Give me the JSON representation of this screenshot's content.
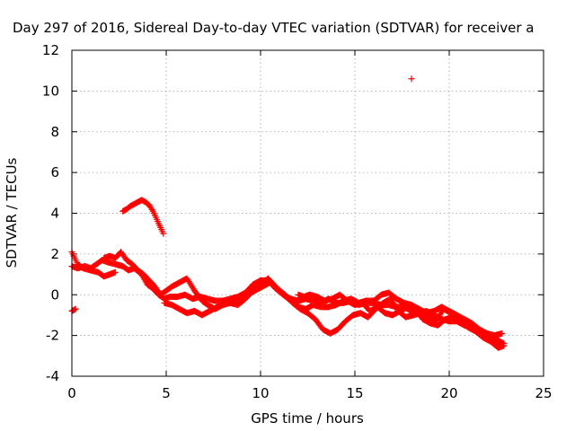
{
  "chart_data": {
    "type": "scatter",
    "title": "Day 297 of 2016, Sidereal Day-to-day VTEC variation (SDTVAR) for receiver a",
    "xlabel": "GPS time / hours",
    "ylabel": "SDTVAR / TECUs",
    "xlim": [
      0,
      25
    ],
    "ylim": [
      -4,
      12
    ],
    "xticks": [
      0,
      5,
      10,
      15,
      20,
      25
    ],
    "yticks": [
      -4,
      -2,
      0,
      2,
      4,
      6,
      8,
      10,
      12
    ],
    "grid": true,
    "marker": "+",
    "color": "#ff0000",
    "series": [
      {
        "name": "SDTVAR",
        "segments": [
          {
            "x": [
              0.0,
              0.3,
              0.6,
              1.0,
              1.4,
              1.7,
              2.0,
              2.3
            ],
            "y": [
              2.1,
              1.5,
              1.3,
              1.2,
              1.1,
              0.9,
              1.0,
              1.1
            ]
          },
          {
            "x": [
              0.0,
              0.3,
              0.7,
              1.0,
              1.3,
              1.6,
              1.9,
              2.3,
              2.7,
              3.0,
              3.3,
              3.7,
              4.0,
              4.3,
              4.6,
              4.9,
              5.2,
              5.6,
              6.0,
              6.4,
              6.8,
              7.2,
              7.6,
              8.0,
              8.4,
              8.8,
              9.2,
              9.6,
              10.0,
              10.4,
              10.8,
              11.2,
              11.6,
              12.0,
              12.4,
              12.8,
              13.2,
              13.6,
              14.0,
              14.4,
              14.8,
              15.2,
              15.6,
              16.0,
              16.4,
              16.8,
              17.2,
              17.6,
              18.0,
              18.4,
              18.8,
              19.2,
              19.6,
              20.0,
              20.4,
              20.8,
              21.2,
              21.6,
              22.0,
              22.4,
              22.8
            ],
            "y": [
              1.4,
              1.3,
              1.4,
              1.3,
              1.5,
              1.7,
              1.6,
              1.5,
              1.4,
              1.2,
              1.3,
              1.0,
              0.5,
              0.3,
              0.0,
              -0.2,
              -0.1,
              -0.1,
              0.0,
              -0.2,
              -0.1,
              -0.2,
              -0.3,
              -0.3,
              -0.2,
              -0.1,
              0.1,
              0.5,
              0.7,
              0.7,
              0.3,
              0.0,
              -0.2,
              -0.3,
              -0.2,
              -0.3,
              -0.4,
              -0.2,
              -0.4,
              -0.4,
              -0.3,
              -0.5,
              -0.4,
              -0.4,
              -0.5,
              -0.5,
              -0.6,
              -0.6,
              -0.8,
              -0.9,
              -0.8,
              -1.0,
              -1.2,
              -1.3,
              -1.3,
              -1.5,
              -1.6,
              -1.9,
              -2.1,
              -2.3,
              -2.5
            ]
          },
          {
            "x": [
              1.7,
              2.0,
              2.3,
              2.6,
              2.9,
              3.2,
              3.5,
              3.8,
              4.1,
              4.4,
              4.7,
              5.0,
              5.3,
              5.7,
              6.1,
              6.5,
              6.9,
              7.2,
              7.6,
              8.0,
              8.4,
              8.8,
              9.2,
              9.6,
              10.0,
              10.4,
              10.8,
              11.2,
              11.6,
              12.0,
              12.4,
              12.8,
              13.2,
              13.6,
              14.0,
              14.4,
              14.8,
              15.2,
              15.6,
              16.0,
              16.4,
              16.8,
              17.2,
              17.6,
              18.0,
              18.4,
              18.8,
              19.2,
              19.6,
              20.0,
              20.4,
              20.8,
              21.2,
              21.6,
              22.0,
              22.4,
              22.8
            ],
            "y": [
              1.8,
              1.9,
              1.8,
              2.1,
              1.7,
              1.5,
              1.2,
              1.0,
              0.7,
              0.4,
              0.0,
              0.2,
              0.4,
              0.6,
              0.8,
              0.2,
              -0.3,
              -0.5,
              -0.7,
              -0.5,
              -0.4,
              -0.5,
              -0.2,
              0.2,
              0.5,
              0.8,
              0.4,
              0.0,
              -0.3,
              -0.6,
              -0.7,
              -0.5,
              -0.6,
              -0.6,
              -0.5,
              -0.3,
              -0.2,
              -0.4,
              -0.3,
              -0.3,
              0.0,
              0.1,
              -0.2,
              -0.4,
              -0.5,
              -0.7,
              -0.9,
              -0.8,
              -0.6,
              -0.8,
              -1.0,
              -1.2,
              -1.4,
              -1.7,
              -1.9,
              -2.0,
              -1.9
            ]
          },
          {
            "x": [
              4.9,
              5.3,
              5.7,
              6.1,
              6.5,
              6.9,
              7.3,
              7.7,
              8.1,
              8.5,
              8.9,
              9.3,
              9.7,
              10.1,
              10.5,
              10.9,
              11.3,
              11.7,
              12.1,
              12.5,
              12.9,
              13.3,
              13.7,
              14.1,
              14.5,
              14.9,
              15.3,
              15.7,
              16.1,
              16.5,
              16.9,
              17.3,
              17.7,
              18.1,
              18.5,
              18.9,
              19.3,
              19.7,
              20.1,
              20.5,
              20.9,
              21.3,
              21.7,
              22.1,
              22.5,
              22.9
            ],
            "y": [
              -0.4,
              -0.5,
              -0.7,
              -0.9,
              -0.8,
              -1.0,
              -0.8,
              -0.6,
              -0.4,
              -0.3,
              -0.2,
              0.0,
              0.2,
              0.4,
              0.6,
              0.3,
              0.0,
              -0.4,
              -0.7,
              -0.9,
              -1.2,
              -1.7,
              -1.9,
              -1.7,
              -1.3,
              -1.0,
              -0.9,
              -1.1,
              -0.7,
              -0.4,
              -0.2,
              -0.8,
              -1.1,
              -1.0,
              -0.9,
              -1.1,
              -1.3,
              -0.7,
              -0.9,
              -1.3,
              -1.5,
              -1.6,
              -1.8,
              -2.0,
              -2.2,
              -2.4
            ]
          },
          {
            "x": [
              12.0,
              12.3,
              12.6,
              13.0,
              13.4,
              13.8,
              14.2,
              14.6,
              15.0,
              15.4,
              15.8,
              16.2,
              16.6,
              17.0,
              17.4,
              17.8,
              18.2,
              18.6,
              19.0,
              19.4,
              19.8,
              20.2,
              20.6,
              21.0,
              21.4,
              21.8,
              22.2,
              22.6,
              22.9
            ],
            "y": [
              0.0,
              -0.1,
              0.0,
              -0.1,
              -0.3,
              -0.2,
              0.0,
              -0.3,
              -0.5,
              -0.4,
              -0.8,
              -0.6,
              -0.9,
              -1.0,
              -0.8,
              -0.6,
              -0.7,
              -1.2,
              -1.4,
              -1.5,
              -1.2,
              -1.1,
              -1.3,
              -1.6,
              -1.8,
              -2.1,
              -2.3,
              -2.6,
              -2.5
            ]
          },
          {
            "x": [
              2.7,
              2.9,
              3.1,
              3.3,
              3.5,
              3.7,
              3.9,
              4.1,
              4.3,
              4.5,
              4.7,
              4.85
            ],
            "y": [
              4.1,
              4.2,
              4.35,
              4.45,
              4.55,
              4.65,
              4.55,
              4.4,
              4.1,
              3.7,
              3.3,
              3.0
            ]
          },
          {
            "x": [
              0.0,
              0.1,
              0.2
            ],
            "y": [
              -0.8,
              -0.75,
              -0.7
            ]
          },
          {
            "x": [
              18.0
            ],
            "y": [
              10.6
            ]
          }
        ]
      }
    ]
  }
}
